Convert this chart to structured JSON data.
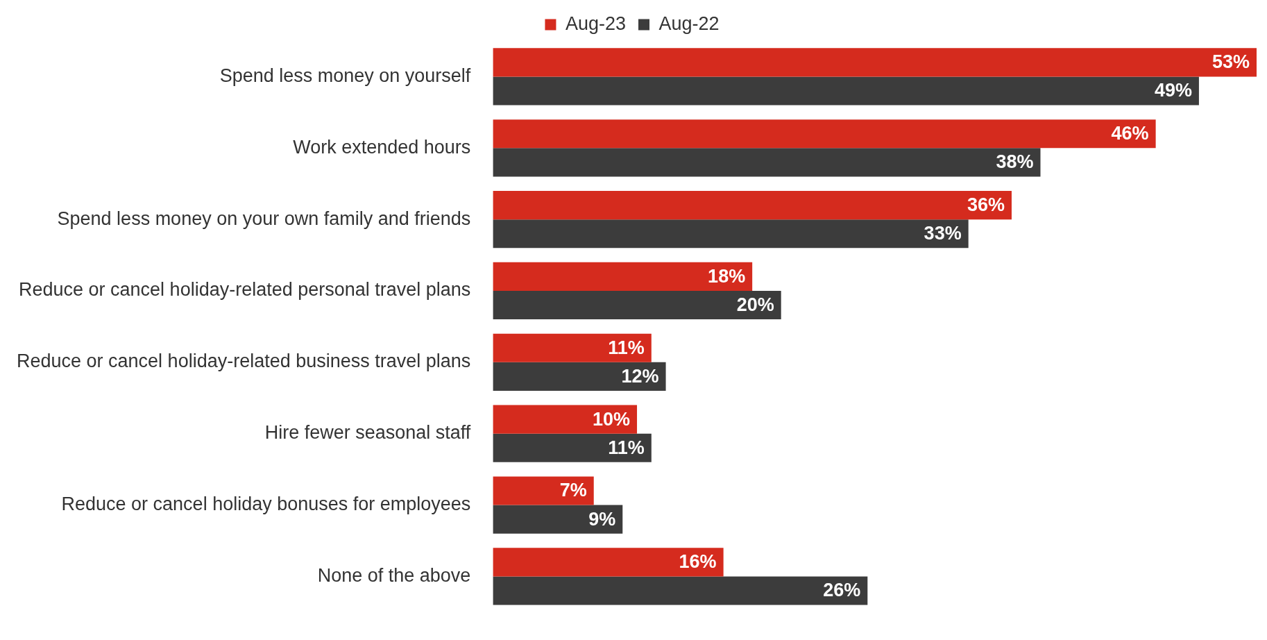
{
  "chart_data": {
    "type": "bar",
    "orientation": "horizontal",
    "legend": "top",
    "categories": [
      "Spend less money on yourself",
      "Work extended hours",
      "Spend less money on your own family and friends",
      "Reduce or cancel holiday-related personal travel plans",
      "Reduce or cancel holiday-related business travel plans",
      "Hire fewer seasonal staff",
      "Reduce or cancel holiday bonuses for employees",
      "None of the above"
    ],
    "series": [
      {
        "name": "Aug-23",
        "color": "#d52b1e",
        "values": [
          53,
          46,
          36,
          18,
          11,
          10,
          7,
          16
        ],
        "value_labels": [
          "53%",
          "46%",
          "36%",
          "18%",
          "11%",
          "10%",
          "7%",
          "16%"
        ]
      },
      {
        "name": "Aug-22",
        "color": "#3c3c3c",
        "values": [
          49,
          38,
          33,
          20,
          12,
          11,
          9,
          26
        ],
        "value_labels": [
          "49%",
          "38%",
          "33%",
          "20%",
          "12%",
          "11%",
          "9%",
          "26%"
        ]
      }
    ]
  }
}
